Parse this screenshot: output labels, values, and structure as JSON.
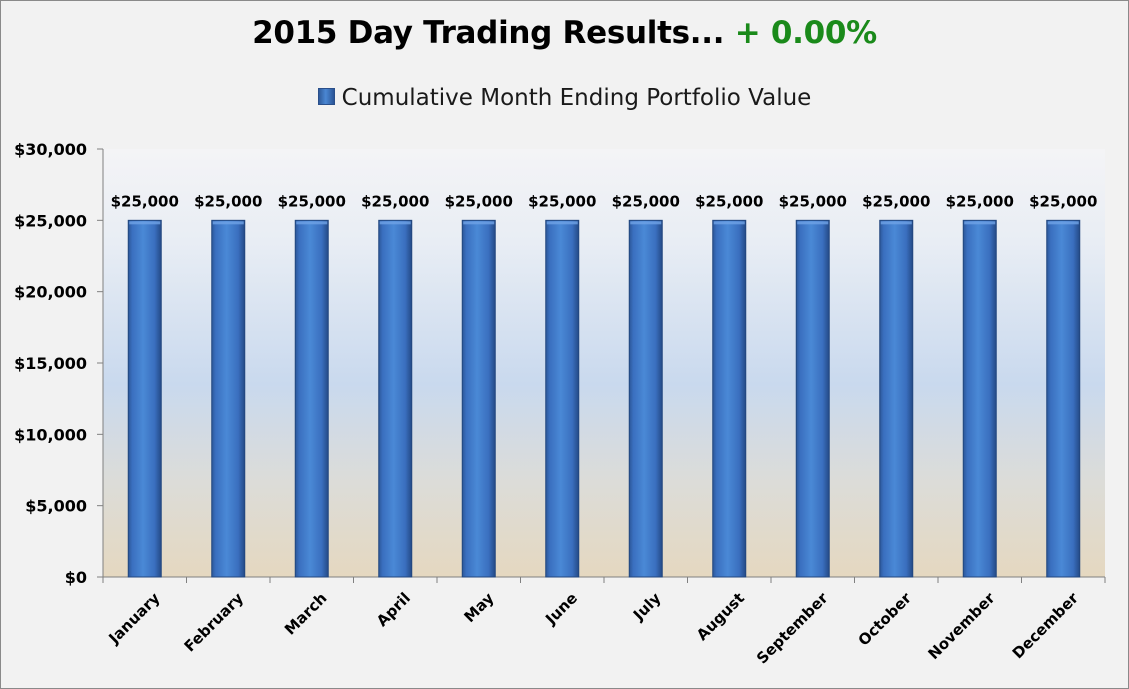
{
  "chart_data": {
    "type": "bar",
    "title": "2015 Day Trading Results...",
    "title_highlight": "+ 0.00%",
    "categories": [
      "January",
      "February",
      "March",
      "April",
      "May",
      "June",
      "July",
      "August",
      "September",
      "October",
      "November",
      "December"
    ],
    "series": [
      {
        "name": "Cumulative Month Ending Portfolio Value",
        "values": [
          25000,
          25000,
          25000,
          25000,
          25000,
          25000,
          25000,
          25000,
          25000,
          25000,
          25000,
          25000
        ]
      }
    ],
    "data_labels": [
      "$25,000",
      "$25,000",
      "$25,000",
      "$25,000",
      "$25,000",
      "$25,000",
      "$25,000",
      "$25,000",
      "$25,000",
      "$25,000",
      "$25,000",
      "$25,000"
    ],
    "y_ticks": [
      0,
      5000,
      10000,
      15000,
      20000,
      25000,
      30000
    ],
    "y_tick_labels": [
      "$0",
      "$5,000",
      "$10,000",
      "$15,000",
      "$20,000",
      "$25,000",
      "$30,000"
    ],
    "ylim": [
      0,
      30000
    ],
    "xlabel": "",
    "ylabel": "",
    "grid": false,
    "legend_position": "top",
    "colors": {
      "bar": "#3f78c8",
      "bar_dark": "#2a5496",
      "title_highlight": "#1a8a1a"
    }
  }
}
